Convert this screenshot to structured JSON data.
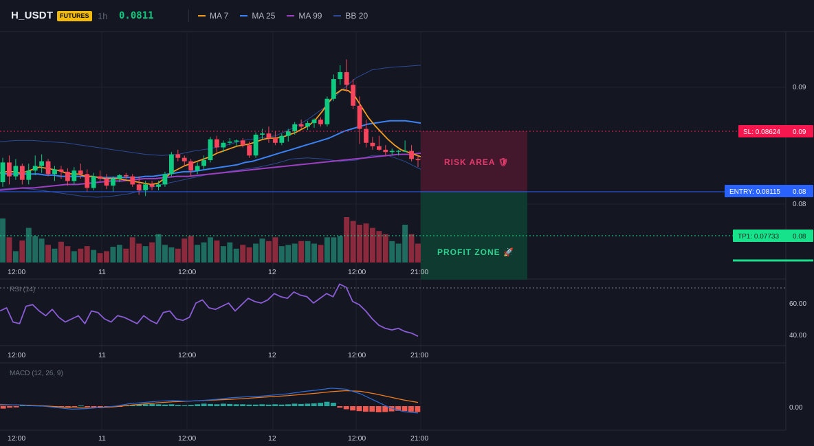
{
  "header": {
    "symbol": "H_USDT",
    "badge": "FUTURES",
    "timeframe": "1h",
    "price": "0.0811",
    "indicators": [
      {
        "label": "MA 7",
        "color": "#f39c1f"
      },
      {
        "label": "MA 25",
        "color": "#3b82f6"
      },
      {
        "label": "MA 99",
        "color": "#9c3fc2"
      },
      {
        "label": "BB 20",
        "color": "#2d4a96"
      }
    ]
  },
  "colors": {
    "up": "#0ecb81",
    "down": "#f6465d",
    "vol_up": "#1e6b5f",
    "vol_down": "#8b2a3c",
    "sl": "#f6174f",
    "entry": "#2962ff",
    "tp": "#15e28b",
    "rsi": "#8a5cd6",
    "macd": "#2f6bd6",
    "signal": "#f57c1f",
    "hist_up": "#26a69a",
    "hist_down": "#f0594f"
  },
  "levels": {
    "sl_label": "SL: 0.08624",
    "sl_value": "0.09",
    "entry_label": "ENTRY: 0.08115",
    "entry_value": "0.08",
    "tp_label": "TP1: 0.07733",
    "tp_value": "0.08"
  },
  "zones": {
    "risk": "RISK AREA 🛡",
    "profit": "PROFIT ZONE 🚀"
  },
  "axes": {
    "main_ticks": [
      "0.09",
      "0.08"
    ],
    "x_labels": [
      "12:00",
      "11",
      "12:00",
      "12",
      "12:00",
      "21:00"
    ],
    "rsi_label": "RSI (14)",
    "rsi_ticks": [
      "60.00",
      "40.00"
    ],
    "macd_label": "MACD (12, 26, 9)",
    "macd_ticks": [
      "0.00"
    ]
  },
  "chart_data": {
    "type": "candlestick",
    "symbol": "H_USDT",
    "interval": "1h",
    "ylim": [
      0.0722,
      0.0922
    ],
    "candles": [
      [
        0.0792,
        0.0813,
        0.0788,
        0.0809
      ],
      [
        0.0809,
        0.0815,
        0.079,
        0.0797
      ],
      [
        0.0797,
        0.0812,
        0.0794,
        0.0806
      ],
      [
        0.0806,
        0.0808,
        0.079,
        0.0794
      ],
      [
        0.0794,
        0.0808,
        0.079,
        0.0802
      ],
      [
        0.0802,
        0.0815,
        0.0798,
        0.0806
      ],
      [
        0.0806,
        0.0816,
        0.08,
        0.081
      ],
      [
        0.081,
        0.0812,
        0.0797,
        0.0799
      ],
      [
        0.0799,
        0.0806,
        0.0793,
        0.0803
      ],
      [
        0.0803,
        0.0806,
        0.0795,
        0.0801
      ],
      [
        0.0801,
        0.0804,
        0.0789,
        0.0793
      ],
      [
        0.0793,
        0.0805,
        0.079,
        0.0802
      ],
      [
        0.0802,
        0.0808,
        0.0795,
        0.0799
      ],
      [
        0.0799,
        0.0803,
        0.0784,
        0.0787
      ],
      [
        0.0787,
        0.08,
        0.0785,
        0.0797
      ],
      [
        0.0797,
        0.0802,
        0.0793,
        0.0795
      ],
      [
        0.0795,
        0.0799,
        0.0786,
        0.0789
      ],
      [
        0.0789,
        0.0797,
        0.0784,
        0.0795
      ],
      [
        0.0795,
        0.0799,
        0.0792,
        0.0798
      ],
      [
        0.0798,
        0.08,
        0.0795,
        0.0797
      ],
      [
        0.0797,
        0.0799,
        0.0788,
        0.079
      ],
      [
        0.079,
        0.0797,
        0.0781,
        0.0785
      ],
      [
        0.0785,
        0.0793,
        0.078,
        0.079
      ],
      [
        0.079,
        0.0793,
        0.0785,
        0.0788
      ],
      [
        0.0788,
        0.0793,
        0.0785,
        0.079
      ],
      [
        0.079,
        0.0801,
        0.0788,
        0.0799
      ],
      [
        0.0799,
        0.0818,
        0.0797,
        0.0816
      ],
      [
        0.0816,
        0.082,
        0.081,
        0.0813
      ],
      [
        0.0813,
        0.0815,
        0.0806,
        0.081
      ],
      [
        0.081,
        0.0812,
        0.0797,
        0.0802
      ],
      [
        0.0802,
        0.0809,
        0.0799,
        0.0806
      ],
      [
        0.0806,
        0.0815,
        0.0803,
        0.0811
      ],
      [
        0.0811,
        0.0831,
        0.0809,
        0.0829
      ],
      [
        0.0829,
        0.0832,
        0.0818,
        0.0822
      ],
      [
        0.0822,
        0.0828,
        0.0818,
        0.0826
      ],
      [
        0.0826,
        0.083,
        0.0824,
        0.0827
      ],
      [
        0.0827,
        0.0829,
        0.0823,
        0.0828
      ],
      [
        0.0828,
        0.083,
        0.0822,
        0.0824
      ],
      [
        0.0824,
        0.0827,
        0.0813,
        0.0815
      ],
      [
        0.0815,
        0.0835,
        0.0813,
        0.0833
      ],
      [
        0.0833,
        0.0838,
        0.0829,
        0.0834
      ],
      [
        0.0834,
        0.084,
        0.0826,
        0.083
      ],
      [
        0.083,
        0.0836,
        0.0824,
        0.0826
      ],
      [
        0.0826,
        0.0834,
        0.0824,
        0.0832
      ],
      [
        0.0832,
        0.0838,
        0.0827,
        0.0836
      ],
      [
        0.0836,
        0.0844,
        0.0833,
        0.0842
      ],
      [
        0.0842,
        0.0846,
        0.0838,
        0.084
      ],
      [
        0.084,
        0.0845,
        0.0837,
        0.0843
      ],
      [
        0.0843,
        0.0847,
        0.0839,
        0.0846
      ],
      [
        0.0846,
        0.0848,
        0.084,
        0.0842
      ],
      [
        0.0842,
        0.0866,
        0.084,
        0.0864
      ],
      [
        0.0864,
        0.0885,
        0.0862,
        0.0881
      ],
      [
        0.0881,
        0.0893,
        0.0876,
        0.0887
      ],
      [
        0.0887,
        0.0898,
        0.087,
        0.0876
      ],
      [
        0.0876,
        0.0881,
        0.0855,
        0.0858
      ],
      [
        0.0858,
        0.0866,
        0.0825,
        0.0838
      ],
      [
        0.0838,
        0.0846,
        0.0822,
        0.0826
      ],
      [
        0.0826,
        0.0831,
        0.082,
        0.0823
      ],
      [
        0.0823,
        0.0832,
        0.0819,
        0.082
      ],
      [
        0.082,
        0.0824,
        0.0815,
        0.0818
      ],
      [
        0.0818,
        0.0821,
        0.0815,
        0.0819
      ],
      [
        0.0819,
        0.082,
        0.0815,
        0.0819
      ],
      [
        0.0819,
        0.0828,
        0.0818,
        0.0819
      ],
      [
        0.0819,
        0.0824,
        0.081,
        0.0812
      ],
      [
        0.0812,
        0.0815,
        0.0805,
        0.0811
      ]
    ],
    "volume": [
      70,
      40,
      18,
      35,
      55,
      42,
      38,
      28,
      22,
      33,
      26,
      18,
      22,
      26,
      20,
      15,
      18,
      25,
      28,
      22,
      40,
      30,
      26,
      32,
      45,
      28,
      24,
      22,
      38,
      42,
      28,
      32,
      40,
      35,
      26,
      32,
      22,
      28,
      24,
      30,
      38,
      34,
      40,
      26,
      28,
      30,
      34,
      34,
      30,
      28,
      40,
      40,
      42,
      72,
      66,
      60,
      62,
      55,
      50,
      45,
      34,
      30,
      60,
      45,
      30
    ],
    "ma7": [
      0.08,
      0.0801,
      0.0801,
      0.08,
      0.0801,
      0.0803,
      0.0805,
      0.0804,
      0.0803,
      0.0802,
      0.08,
      0.0799,
      0.0799,
      0.0797,
      0.0797,
      0.0796,
      0.0795,
      0.0795,
      0.0795,
      0.0794,
      0.0793,
      0.0792,
      0.0791,
      0.079,
      0.0791,
      0.0795,
      0.08,
      0.0803,
      0.0806,
      0.0808,
      0.081,
      0.0812,
      0.0814,
      0.0817,
      0.0819,
      0.0821,
      0.0823,
      0.0824,
      0.0825,
      0.0827,
      0.0829,
      0.083,
      0.083,
      0.0831,
      0.0833,
      0.0835,
      0.0838,
      0.0841,
      0.0846,
      0.0853,
      0.0861,
      0.0868,
      0.0872,
      0.0871,
      0.0866,
      0.0857,
      0.0848,
      0.0841,
      0.0835,
      0.0829,
      0.0824,
      0.082,
      0.0818,
      0.0816,
      0.0814
    ],
    "ma25": [
      0.08,
      0.0799,
      0.0799,
      0.0799,
      0.0799,
      0.0799,
      0.0798,
      0.0798,
      0.0797,
      0.0797,
      0.0797,
      0.0797,
      0.0797,
      0.0796,
      0.0796,
      0.0796,
      0.0796,
      0.0796,
      0.0796,
      0.0797,
      0.0797,
      0.0798,
      0.0799,
      0.08,
      0.0801,
      0.0801,
      0.0802,
      0.0803,
      0.0804,
      0.0805,
      0.0806,
      0.0807,
      0.0809,
      0.081,
      0.0812,
      0.0814,
      0.0816,
      0.0818,
      0.082,
      0.0822,
      0.0824,
      0.0826,
      0.0828,
      0.083,
      0.0833,
      0.0836,
      0.0838,
      0.084,
      0.0842,
      0.0843,
      0.0844,
      0.0845,
      0.0845,
      0.0845,
      0.0844,
      0.0843
    ],
    "ma99": [
      0.0785,
      0.0786,
      0.0787,
      0.0787,
      0.0788,
      0.0789,
      0.079,
      0.079,
      0.0791,
      0.0792,
      0.0793,
      0.0793,
      0.0794,
      0.0795,
      0.0795,
      0.0796,
      0.0797,
      0.0797,
      0.0798,
      0.0799,
      0.08,
      0.0801,
      0.0802,
      0.0803,
      0.0804,
      0.0805,
      0.0806,
      0.0807,
      0.0808,
      0.0809,
      0.081,
      0.0811,
      0.0812,
      0.0813,
      0.0814,
      0.0815,
      0.0816,
      0.0816,
      0.0817
    ],
    "bb_upper": [
      0.0827,
      0.0828,
      0.0828,
      0.0827,
      0.0826,
      0.0824,
      0.0822,
      0.082,
      0.0818,
      0.0816,
      0.0815,
      0.0816,
      0.0819,
      0.0821,
      0.0824,
      0.0828,
      0.083,
      0.0832,
      0.0838,
      0.0846,
      0.0856,
      0.087,
      0.0882,
      0.0889,
      0.0891,
      0.0892,
      0.0893
    ],
    "bb_lower": [
      0.0786,
      0.0787,
      0.0786,
      0.0784,
      0.0782,
      0.078,
      0.0779,
      0.078,
      0.0782,
      0.0786,
      0.079,
      0.0793,
      0.0796,
      0.0799,
      0.0801,
      0.0803,
      0.0805,
      0.0808,
      0.0812,
      0.0813,
      0.0812,
      0.081,
      0.0811,
      0.0815,
      0.0815,
      0.081,
      0.0803
    ],
    "rsi": [
      55,
      57,
      48,
      47,
      58,
      59,
      55,
      52,
      56,
      51,
      48,
      50,
      52,
      47,
      55,
      54,
      50,
      48,
      52,
      51,
      49,
      47,
      52,
      49,
      47,
      54,
      55,
      50,
      49,
      51,
      60,
      62,
      57,
      56,
      58,
      60,
      55,
      59,
      63,
      61,
      60,
      62,
      66,
      64,
      63,
      67,
      65,
      64,
      60,
      63,
      66,
      64,
      72,
      70,
      61,
      59,
      55,
      50,
      46,
      44,
      43,
      44,
      42,
      41,
      39
    ],
    "macd": [
      6e-05,
      4e-05,
      2e-05,
      0.0,
      -5e-05,
      -0.0001,
      -8e-05,
      -4e-05,
      0.0,
      8e-05,
      0.00012,
      0.00016,
      0.00018,
      0.00016,
      0.00018,
      0.00022,
      0.00027,
      0.0003,
      0.00032,
      0.00036,
      0.0004,
      0.00047,
      0.00052,
      0.00058,
      0.00055,
      0.0004,
      0.00018,
      -4e-05,
      -0.00018,
      -0.00022
    ],
    "signal": [
      4e-05,
      4e-05,
      3e-05,
      1e-05,
      -2e-05,
      -5e-05,
      -6e-05,
      -5e-05,
      -2e-05,
      3e-05,
      7e-05,
      0.00011,
      0.00014,
      0.00016,
      0.00018,
      0.0002,
      0.00022,
      0.00025,
      0.00028,
      0.00031,
      0.00034,
      0.00038,
      0.00042,
      0.00047,
      0.0005,
      0.00048,
      0.0004,
      0.0003,
      0.0002,
      0.00012
    ],
    "hist": [
      -8e-05,
      -5e-05,
      -4e-05,
      3e-05,
      4e-05,
      2e-05,
      1e-05,
      -2e-05,
      -3e-05,
      -2e-05,
      -3e-05,
      -1e-05,
      2e-05,
      -3e-05,
      -4e-05,
      -5e-05,
      -4e-05,
      -3e-05,
      -2e-05,
      2e-05,
      4e-05,
      5e-05,
      6e-05,
      7e-05,
      6e-05,
      5e-05,
      6e-05,
      4e-05,
      3e-05,
      4e-05,
      6e-05,
      8e-05,
      7e-05,
      6e-05,
      8e-05,
      7e-05,
      6e-05,
      6e-05,
      5e-05,
      5e-05,
      6e-05,
      5e-05,
      6e-05,
      5e-05,
      6e-05,
      8e-05,
      7e-05,
      8e-05,
      9e-05,
      0.00011,
      0.00014,
      0.00011,
      -5e-05,
      -0.0001,
      -0.00014,
      -0.00016,
      -0.00018,
      -0.00018,
      -0.0002,
      -0.00019,
      -0.00017,
      -0.00015,
      -0.00016,
      -0.00018,
      -0.00019
    ]
  }
}
